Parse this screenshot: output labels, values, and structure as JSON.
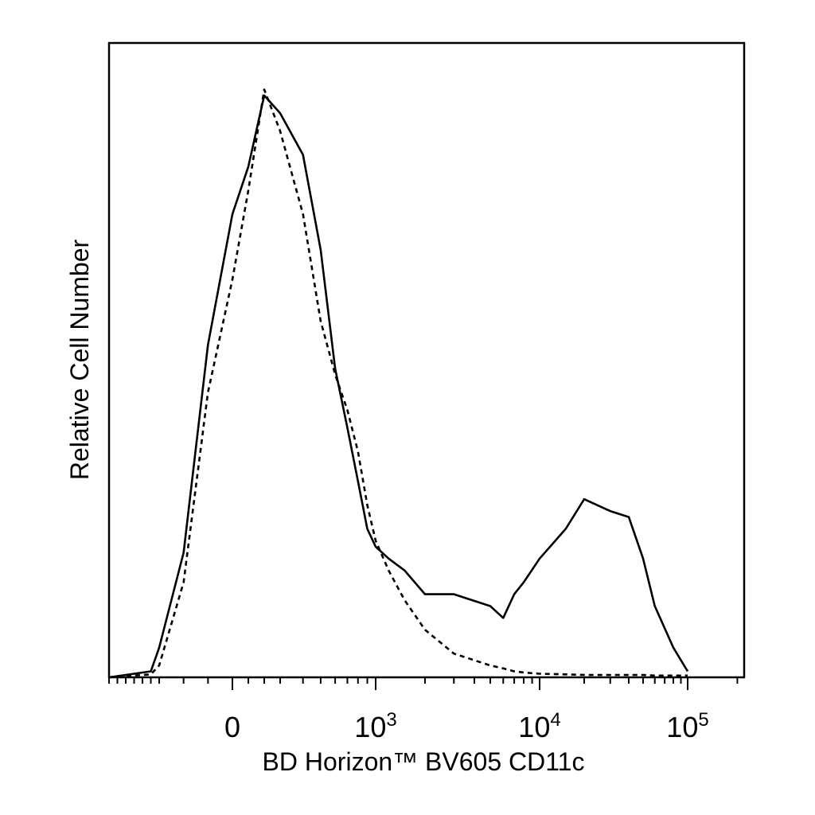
{
  "chart_data": {
    "type": "line",
    "title": "",
    "xlabel": "BD Horizon™ BV605 CD11c",
    "ylabel": "Relative Cell Number",
    "x_scale": "biexponential",
    "xlim": [
      -900,
      220000
    ],
    "ylim": [
      0,
      1
    ],
    "grid": false,
    "legend": "none",
    "x_ticks": [
      {
        "value": 0,
        "label": "0",
        "sup": ""
      },
      {
        "value": 1000,
        "label": "10",
        "sup": "3"
      },
      {
        "value": 10000,
        "label": "10",
        "sup": "4"
      },
      {
        "value": 100000,
        "label": "10",
        "sup": "5"
      }
    ],
    "series": [
      {
        "style": "solid",
        "color": "#000000",
        "x": [
          -900,
          -400,
          -300,
          -200,
          -100,
          0,
          100,
          200,
          300,
          400,
          500,
          600,
          700,
          800,
          900,
          1000,
          1200,
          1500,
          2000,
          3000,
          5000,
          6000,
          7000,
          8000,
          10000,
          15000,
          20000,
          30000,
          40000,
          50000,
          60000,
          80000,
          100000
        ],
        "y": [
          0.0,
          0.01,
          0.05,
          0.21,
          0.56,
          0.78,
          0.86,
          0.98,
          0.95,
          0.88,
          0.72,
          0.52,
          0.42,
          0.33,
          0.25,
          0.22,
          0.2,
          0.18,
          0.14,
          0.14,
          0.12,
          0.1,
          0.14,
          0.16,
          0.2,
          0.25,
          0.3,
          0.28,
          0.27,
          0.2,
          0.12,
          0.05,
          0.01
        ]
      },
      {
        "style": "dashed",
        "color": "#000000",
        "x": [
          -900,
          -400,
          -300,
          -200,
          -100,
          0,
          100,
          200,
          300,
          400,
          500,
          600,
          700,
          800,
          900,
          1000,
          1200,
          1500,
          2000,
          3000,
          5000,
          6000,
          7000,
          8000,
          10000,
          15000,
          20000,
          30000,
          40000,
          50000,
          60000,
          80000,
          100000
        ],
        "y": [
          0.0,
          0.005,
          0.02,
          0.16,
          0.48,
          0.67,
          0.82,
          0.99,
          0.92,
          0.78,
          0.6,
          0.51,
          0.45,
          0.38,
          0.29,
          0.23,
          0.18,
          0.13,
          0.08,
          0.04,
          0.02,
          0.015,
          0.01,
          0.008,
          0.006,
          0.005,
          0.004,
          0.004,
          0.004,
          0.004,
          0.003,
          0.003,
          0.003
        ]
      }
    ]
  }
}
